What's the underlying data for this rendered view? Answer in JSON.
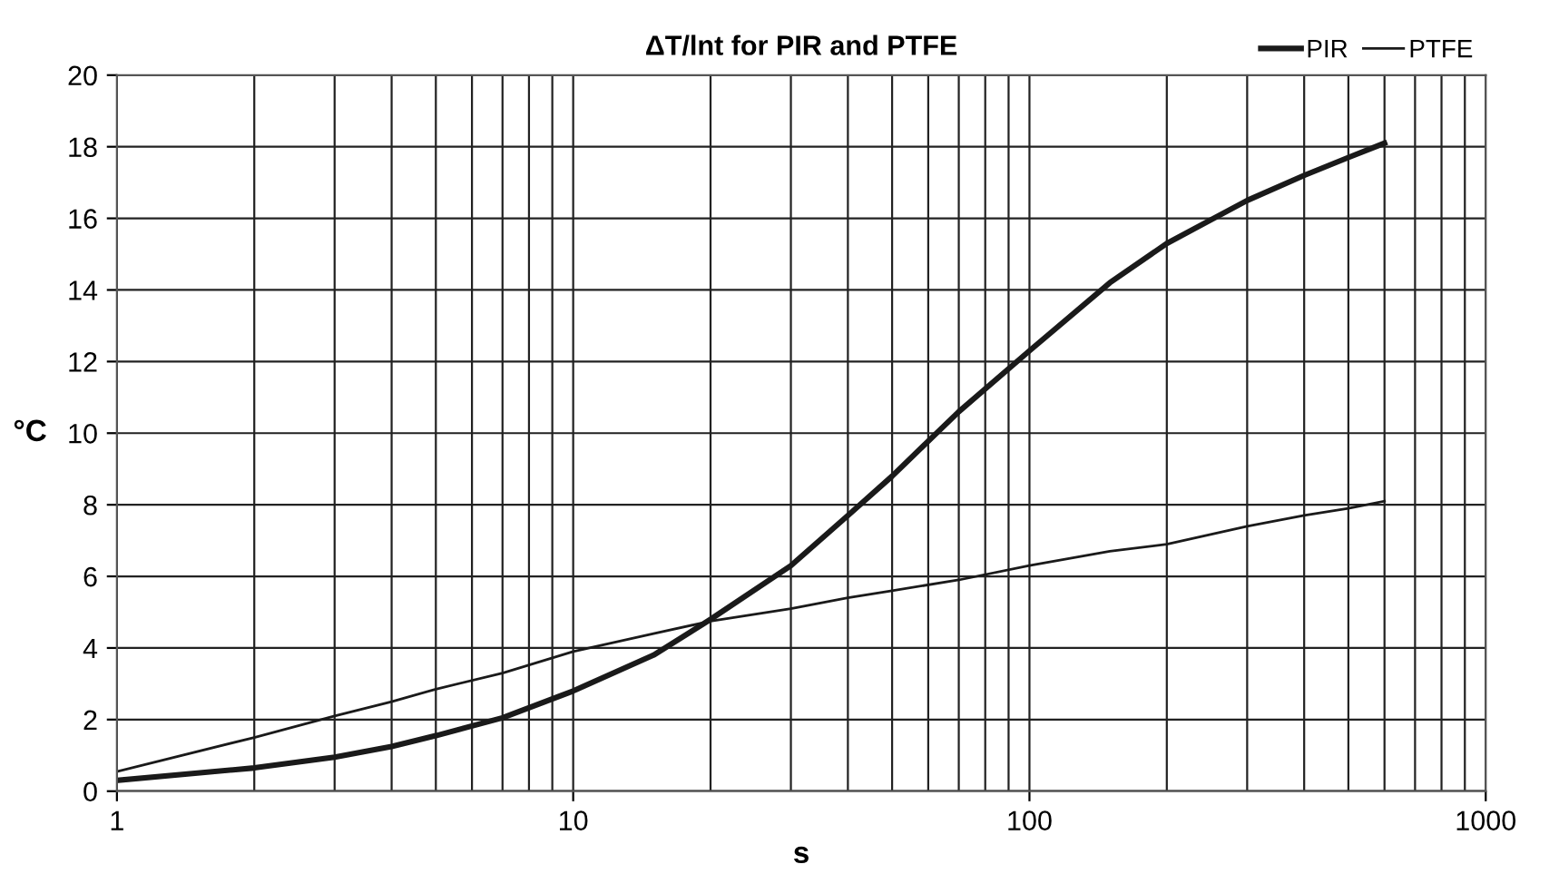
{
  "chart_data": {
    "type": "line",
    "title": "ΔT/lnt for PIR and PTFE",
    "xlabel": "s",
    "ylabel": "°C",
    "log": "x",
    "xlim": [
      1,
      1000
    ],
    "xticks": [
      1,
      10,
      100,
      1000,
      {
        "value": 2,
        "label": null
      },
      {
        "value": 3,
        "label": null
      },
      {
        "value": 4,
        "label": null
      },
      {
        "value": 5,
        "label": null
      },
      {
        "value": 6,
        "label": null
      },
      {
        "value": 7,
        "label": null
      },
      {
        "value": 8,
        "label": null
      },
      {
        "value": 9,
        "label": null
      },
      {
        "value": 20,
        "label": null
      },
      {
        "value": 30,
        "label": null
      },
      {
        "value": 40,
        "label": null
      },
      {
        "value": 50,
        "label": null
      },
      {
        "value": 60,
        "label": null
      },
      {
        "value": 70,
        "label": null
      },
      {
        "value": 80,
        "label": null
      },
      {
        "value": 90,
        "label": null
      },
      {
        "value": 200,
        "label": null
      },
      {
        "value": 300,
        "label": null
      },
      {
        "value": 400,
        "label": null
      },
      {
        "value": 500,
        "label": null
      },
      {
        "value": 600,
        "label": null
      },
      {
        "value": 700,
        "label": null
      },
      {
        "value": 800,
        "label": null
      },
      {
        "value": 900,
        "label": null
      }
    ],
    "ylim": [
      0,
      20
    ],
    "yticks": [
      0,
      2,
      4,
      6,
      8,
      10,
      12,
      14,
      16,
      18,
      20
    ],
    "grid": true,
    "legend": "top right",
    "marker": "none",
    "line_style": "solid",
    "x": [
      1,
      2,
      3,
      4,
      5,
      7,
      10,
      15,
      20,
      30,
      40,
      50,
      70,
      100,
      150,
      200,
      300,
      400,
      500,
      600
    ],
    "series": [
      {
        "name": "PIR",
        "color": "#1a1a1a",
        "values": [
          0.3,
          0.65,
          0.95,
          1.25,
          1.55,
          2.05,
          2.8,
          3.8,
          4.8,
          6.3,
          7.7,
          8.8,
          10.6,
          12.3,
          14.2,
          15.3,
          16.5,
          17.2,
          17.7,
          18.1
        ]
      },
      {
        "name": "PTFE",
        "color": "#1a1a1a",
        "values": [
          0.55,
          1.5,
          2.1,
          2.5,
          2.85,
          3.3,
          3.9,
          4.4,
          4.75,
          5.1,
          5.4,
          5.6,
          5.9,
          6.3,
          6.7,
          6.9,
          7.4,
          7.7,
          7.9,
          8.1
        ]
      }
    ]
  }
}
